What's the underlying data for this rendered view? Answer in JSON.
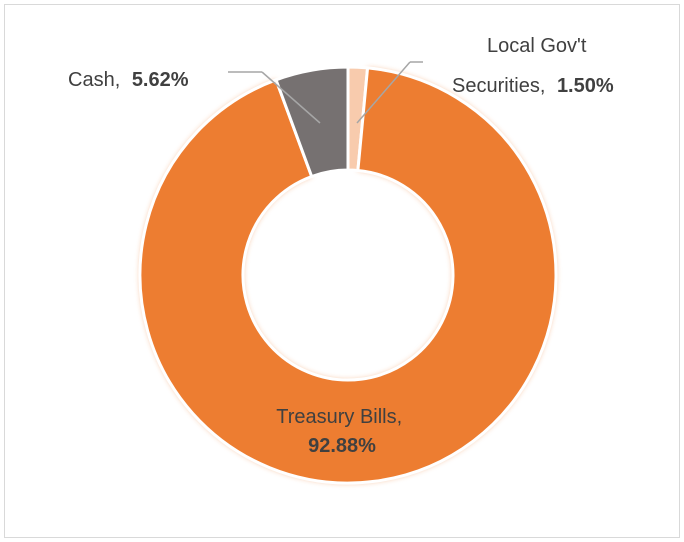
{
  "chart_data": {
    "type": "pie",
    "variant": "doughnut",
    "title": "",
    "legend": "none",
    "slices": [
      {
        "label": "Local Gov't Securities",
        "label_line1": "Local Gov't",
        "label_line2": "Securities,",
        "value": 1.5,
        "value_text": "1.50%",
        "color": "#f8cbad"
      },
      {
        "label": "Treasury Bills",
        "label_line1": "Treasury Bills,",
        "value": 92.88,
        "value_text": "92.88%",
        "color": "#ed7d31"
      },
      {
        "label": "Cash",
        "label_line1": "Cash,",
        "value": 5.62,
        "value_text": "5.62%",
        "color": "#767171"
      }
    ],
    "separator_color": "#ffffff",
    "leader_line_color": "#a6a6a6"
  }
}
